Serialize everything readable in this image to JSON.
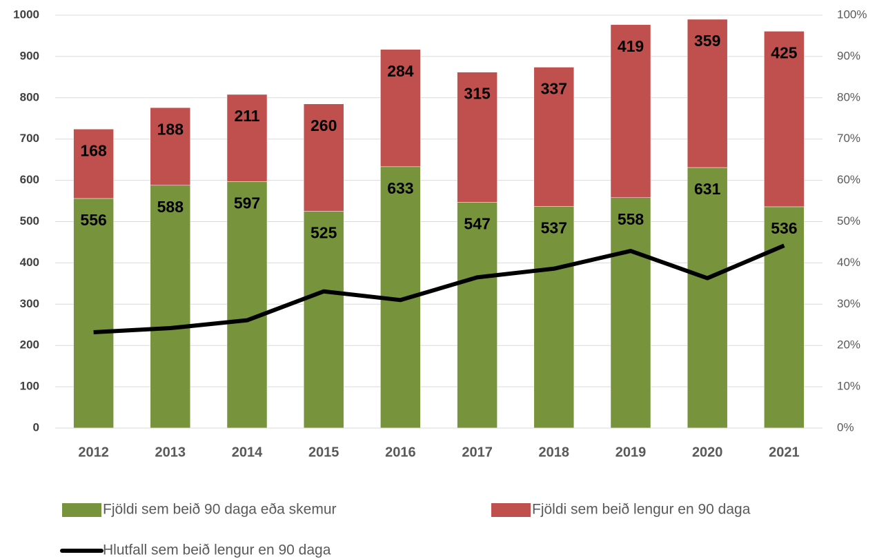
{
  "chart_data": {
    "type": "bar",
    "categories": [
      "2012",
      "2013",
      "2014",
      "2015",
      "2016",
      "2017",
      "2018",
      "2019",
      "2020",
      "2021"
    ],
    "stacked": true,
    "series": [
      {
        "name": "Fjöldi sem beið 90 daga eða skemur",
        "color": "#77933c",
        "values": [
          556,
          588,
          597,
          525,
          633,
          547,
          537,
          558,
          631,
          536
        ]
      },
      {
        "name": "Fjöldi sem beið lengur en 90 daga",
        "color": "#c0504d",
        "values": [
          168,
          188,
          211,
          260,
          284,
          315,
          337,
          419,
          359,
          425
        ]
      },
      {
        "name": "Hlutfall sem beið lengur en 90 daga",
        "type": "line",
        "axis": "y2",
        "color": "#000000",
        "values": [
          23.2,
          24.2,
          26.1,
          33.1,
          31.0,
          36.5,
          38.6,
          42.9,
          36.3,
          44.2
        ]
      }
    ],
    "ylim": [
      0,
      1000
    ],
    "yticks": [
      0,
      100,
      200,
      300,
      400,
      500,
      600,
      700,
      800,
      900,
      1000
    ],
    "y2lim": [
      0,
      100
    ],
    "y2ticks": [
      {
        "value": 0,
        "label": "0%"
      },
      {
        "value": 10,
        "label": "10%"
      },
      {
        "value": 20,
        "label": "20%"
      },
      {
        "value": 30,
        "label": "30%"
      },
      {
        "value": 40,
        "label": "40%"
      },
      {
        "value": 50,
        "label": "50%"
      },
      {
        "value": 60,
        "label": "60%"
      },
      {
        "value": 70,
        "label": "70%"
      },
      {
        "value": 80,
        "label": "80%"
      },
      {
        "value": 90,
        "label": "90%"
      },
      {
        "value": 100,
        "label": "100%"
      }
    ],
    "grid": true,
    "legend": "bottom"
  }
}
